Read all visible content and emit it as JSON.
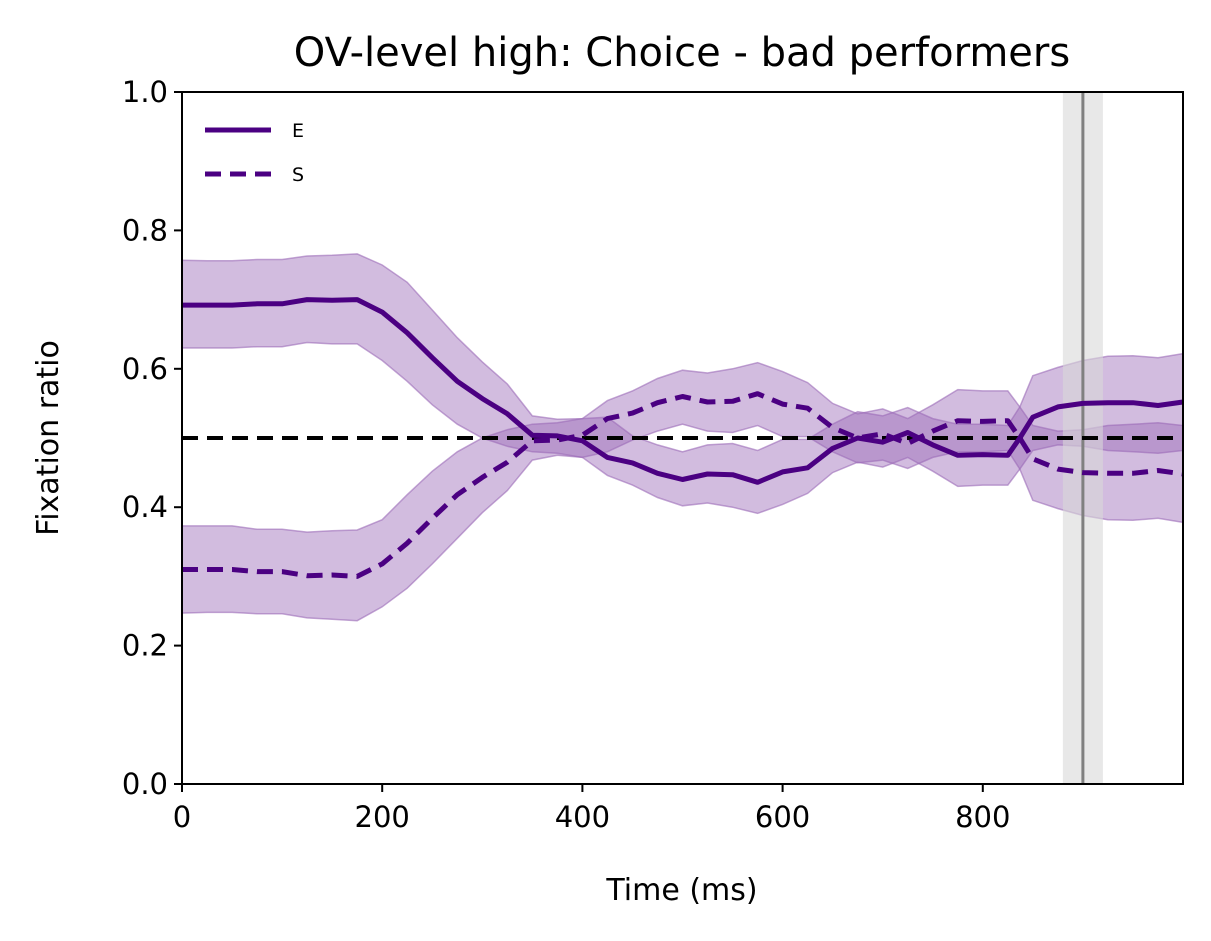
{
  "chart_data": {
    "type": "line",
    "title": "OV-level high: Choice - bad performers",
    "xlabel": "Time (ms)",
    "ylabel": "Fixation ratio",
    "xlim": [
      0,
      1000
    ],
    "ylim": [
      0,
      1.0
    ],
    "xticks": [
      0,
      200,
      400,
      600,
      800
    ],
    "xtick_labels": [
      "0",
      "200",
      "400",
      "600",
      "800"
    ],
    "yticks": [
      0.0,
      0.2,
      0.4,
      0.6,
      0.8,
      1.0
    ],
    "ytick_labels": [
      "0.0",
      "0.2",
      "0.4",
      "0.6",
      "0.8",
      "1.0"
    ],
    "grid": false,
    "legend_position": "top-left",
    "reference_line": {
      "y": 0.5,
      "style": "dashed",
      "color": "#000000"
    },
    "vertical_marker": {
      "x": 900,
      "band": [
        880,
        920
      ],
      "line_color": "#808080",
      "band_color": "#d9d9d9"
    },
    "x": [
      0,
      25,
      50,
      75,
      100,
      125,
      150,
      175,
      200,
      225,
      250,
      275,
      300,
      325,
      350,
      375,
      400,
      425,
      450,
      475,
      500,
      525,
      550,
      575,
      600,
      625,
      650,
      675,
      700,
      725,
      750,
      775,
      800,
      825,
      837,
      850,
      875,
      900,
      925,
      950,
      975,
      1000
    ],
    "series": [
      {
        "name": "E",
        "line_style": "solid",
        "color": "#4b0082",
        "values": [
          0.692,
          0.692,
          0.692,
          0.694,
          0.694,
          0.7,
          0.699,
          0.7,
          0.682,
          0.652,
          0.616,
          0.582,
          0.557,
          0.535,
          0.504,
          0.503,
          0.496,
          0.472,
          0.464,
          0.449,
          0.44,
          0.448,
          0.447,
          0.436,
          0.451,
          0.457,
          0.485,
          0.5,
          0.494,
          0.508,
          0.49,
          0.475,
          0.476,
          0.475,
          0.5,
          0.53,
          0.545,
          0.55,
          0.551,
          0.551,
          0.547,
          0.552
        ],
        "lower": [
          0.63,
          0.63,
          0.63,
          0.632,
          0.632,
          0.638,
          0.636,
          0.636,
          0.612,
          0.582,
          0.548,
          0.52,
          0.5,
          0.488,
          0.48,
          0.478,
          0.472,
          0.446,
          0.432,
          0.414,
          0.402,
          0.406,
          0.4,
          0.391,
          0.404,
          0.42,
          0.45,
          0.465,
          0.458,
          0.472,
          0.452,
          0.43,
          0.432,
          0.432,
          0.455,
          0.482,
          0.49,
          0.488,
          0.482,
          0.48,
          0.478,
          0.482
        ],
        "upper": [
          0.757,
          0.756,
          0.756,
          0.758,
          0.758,
          0.763,
          0.764,
          0.766,
          0.75,
          0.725,
          0.685,
          0.645,
          0.61,
          0.578,
          0.532,
          0.527,
          0.528,
          0.53,
          0.503,
          0.49,
          0.48,
          0.49,
          0.492,
          0.482,
          0.498,
          0.498,
          0.52,
          0.538,
          0.532,
          0.544,
          0.528,
          0.52,
          0.52,
          0.518,
          0.545,
          0.59,
          0.602,
          0.612,
          0.618,
          0.619,
          0.616,
          0.622
        ]
      },
      {
        "name": "S",
        "line_style": "dashed",
        "color": "#4b0082",
        "values": [
          0.31,
          0.31,
          0.31,
          0.307,
          0.307,
          0.301,
          0.302,
          0.3,
          0.318,
          0.348,
          0.384,
          0.418,
          0.443,
          0.465,
          0.496,
          0.497,
          0.504,
          0.528,
          0.536,
          0.551,
          0.56,
          0.552,
          0.553,
          0.564,
          0.549,
          0.543,
          0.515,
          0.5,
          0.506,
          0.492,
          0.51,
          0.525,
          0.524,
          0.525,
          0.5,
          0.47,
          0.455,
          0.45,
          0.449,
          0.449,
          0.453,
          0.448
        ],
        "lower": [
          0.247,
          0.248,
          0.248,
          0.246,
          0.246,
          0.24,
          0.238,
          0.236,
          0.256,
          0.283,
          0.318,
          0.355,
          0.392,
          0.424,
          0.468,
          0.475,
          0.472,
          0.48,
          0.497,
          0.51,
          0.52,
          0.51,
          0.508,
          0.518,
          0.502,
          0.502,
          0.48,
          0.464,
          0.468,
          0.456,
          0.472,
          0.48,
          0.48,
          0.482,
          0.455,
          0.41,
          0.398,
          0.388,
          0.382,
          0.381,
          0.384,
          0.378
        ],
        "upper": [
          0.373,
          0.373,
          0.373,
          0.368,
          0.368,
          0.364,
          0.366,
          0.367,
          0.382,
          0.418,
          0.452,
          0.48,
          0.5,
          0.512,
          0.52,
          0.522,
          0.528,
          0.554,
          0.568,
          0.586,
          0.598,
          0.594,
          0.6,
          0.609,
          0.596,
          0.58,
          0.55,
          0.535,
          0.542,
          0.528,
          0.548,
          0.57,
          0.568,
          0.568,
          0.545,
          0.518,
          0.51,
          0.512,
          0.518,
          0.52,
          0.522,
          0.518
        ]
      }
    ]
  }
}
